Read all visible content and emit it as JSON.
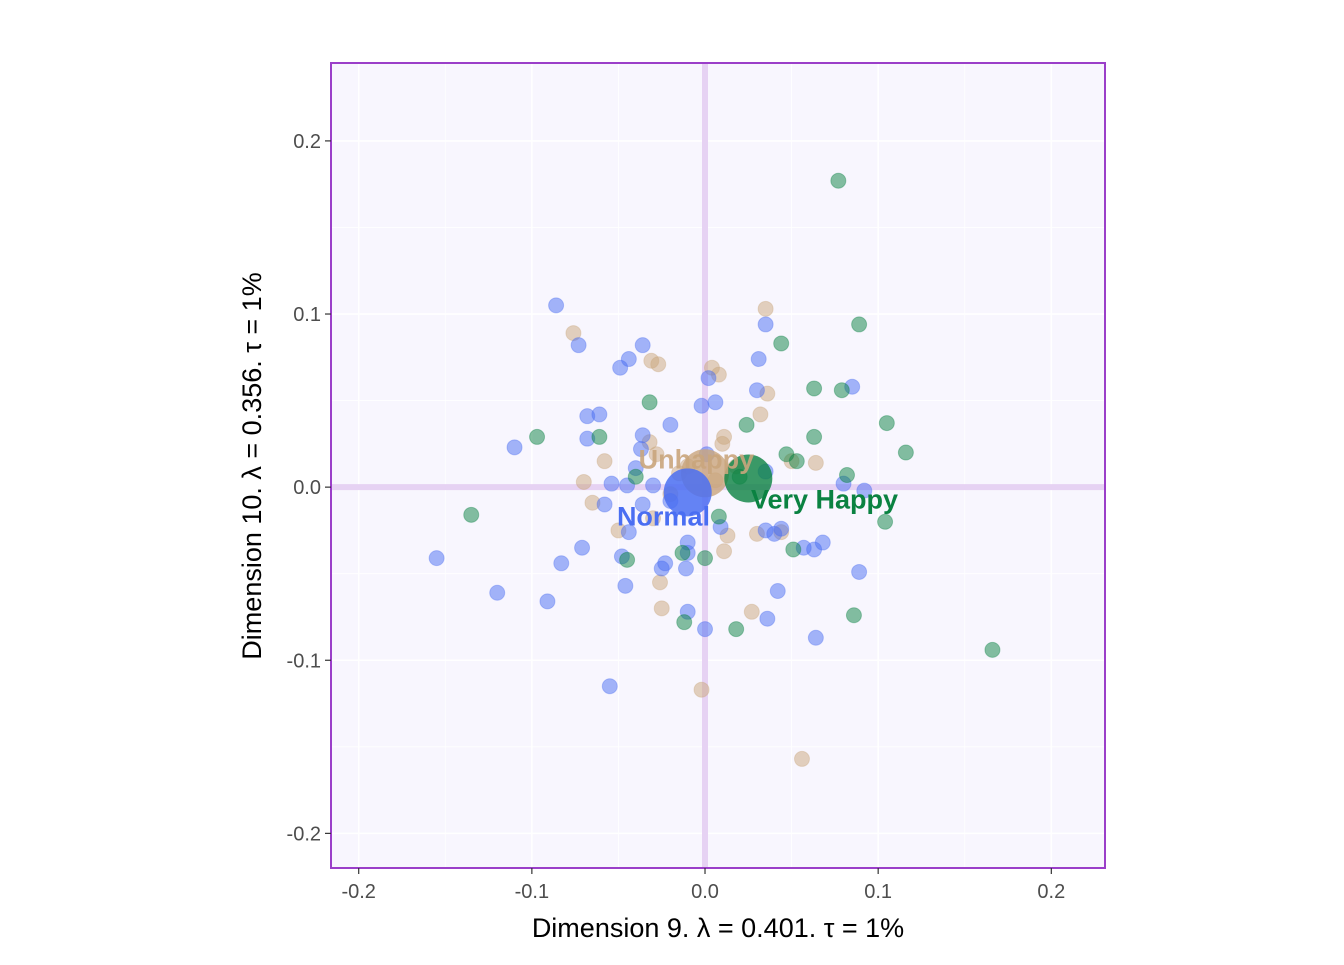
{
  "chart_data": {
    "type": "scatter",
    "xlabel": "Dimension 9.   λ = 0.401.  τ = 1%",
    "ylabel": "Dimension 10.   λ = 0.356.  τ = 1%",
    "xlim": [
      -0.216,
      0.231
    ],
    "ylim": [
      -0.22,
      0.245
    ],
    "x_ticks": [
      -0.2,
      -0.1,
      0.0,
      0.1,
      0.2
    ],
    "x_tick_labels": [
      "-0.2",
      "-0.1",
      "0.0",
      "0.1",
      "0.2"
    ],
    "y_ticks": [
      -0.2,
      -0.1,
      0.0,
      0.1,
      0.2
    ],
    "y_tick_labels": [
      "-0.2",
      "-0.1",
      "0.0",
      "0.1",
      "0.2"
    ],
    "grid": true,
    "zero_lines": true,
    "colors": {
      "panel_background": "#F8F6FE",
      "panel_border": "#9B3FC9",
      "grid": "#FFFFFF",
      "zero_line": "#E6D2F3",
      "Unhappy": "#C9A57C",
      "Normal": "#4A6EF2",
      "Very Happy": "#0A8241"
    },
    "groups": [
      {
        "name": "Unhappy",
        "center": {
          "x": 0.0,
          "y": 0.008
        },
        "label": {
          "x": -0.005,
          "y": 0.016
        },
        "points": [
          {
            "x": -0.076,
            "y": 0.089
          },
          {
            "x": -0.031,
            "y": 0.073
          },
          {
            "x": -0.027,
            "y": 0.071
          },
          {
            "x": 0.035,
            "y": 0.103
          },
          {
            "x": 0.004,
            "y": 0.069
          },
          {
            "x": 0.008,
            "y": 0.065
          },
          {
            "x": 0.036,
            "y": 0.054
          },
          {
            "x": 0.032,
            "y": 0.042
          },
          {
            "x": 0.011,
            "y": 0.029
          },
          {
            "x": -0.032,
            "y": 0.026
          },
          {
            "x": -0.058,
            "y": 0.015
          },
          {
            "x": -0.07,
            "y": 0.003
          },
          {
            "x": -0.065,
            "y": -0.009
          },
          {
            "x": -0.05,
            "y": -0.025
          },
          {
            "x": -0.03,
            "y": -0.018
          },
          {
            "x": -0.026,
            "y": -0.055
          },
          {
            "x": -0.025,
            "y": -0.07
          },
          {
            "x": -0.002,
            "y": -0.117
          },
          {
            "x": 0.011,
            "y": -0.037
          },
          {
            "x": 0.013,
            "y": -0.028
          },
          {
            "x": 0.03,
            "y": -0.027
          },
          {
            "x": 0.027,
            "y": -0.072
          },
          {
            "x": 0.044,
            "y": -0.026
          },
          {
            "x": 0.056,
            "y": -0.157
          },
          {
            "x": 0.05,
            "y": 0.015
          },
          {
            "x": 0.064,
            "y": 0.014
          },
          {
            "x": 0.01,
            "y": 0.025
          },
          {
            "x": 0.018,
            "y": 0.012
          },
          {
            "x": -0.015,
            "y": 0.008
          },
          {
            "x": -0.028,
            "y": 0.019
          },
          {
            "x": -0.02,
            "y": -0.004
          },
          {
            "x": 0.006,
            "y": 0.004
          },
          {
            "x": -0.01,
            "y": 0.012
          }
        ]
      },
      {
        "name": "Normal",
        "center": {
          "x": -0.01,
          "y": -0.003
        },
        "label": {
          "x": -0.024,
          "y": -0.017
        },
        "points": [
          {
            "x": -0.086,
            "y": 0.105
          },
          {
            "x": -0.073,
            "y": 0.082
          },
          {
            "x": -0.036,
            "y": 0.082
          },
          {
            "x": -0.044,
            "y": 0.074
          },
          {
            "x": -0.049,
            "y": 0.069
          },
          {
            "x": 0.035,
            "y": 0.094
          },
          {
            "x": 0.031,
            "y": 0.074
          },
          {
            "x": 0.002,
            "y": 0.063
          },
          {
            "x": 0.03,
            "y": 0.056
          },
          {
            "x": 0.085,
            "y": 0.058
          },
          {
            "x": 0.006,
            "y": 0.049
          },
          {
            "x": -0.002,
            "y": 0.047
          },
          {
            "x": -0.02,
            "y": 0.036
          },
          {
            "x": -0.068,
            "y": 0.041
          },
          {
            "x": -0.061,
            "y": 0.042
          },
          {
            "x": -0.036,
            "y": 0.03
          },
          {
            "x": -0.068,
            "y": 0.028
          },
          {
            "x": -0.11,
            "y": 0.023
          },
          {
            "x": -0.037,
            "y": 0.022
          },
          {
            "x": -0.04,
            "y": 0.011
          },
          {
            "x": -0.054,
            "y": 0.002
          },
          {
            "x": -0.045,
            "y": 0.001
          },
          {
            "x": -0.058,
            "y": -0.01
          },
          {
            "x": -0.03,
            "y": 0.001
          },
          {
            "x": -0.036,
            "y": -0.01
          },
          {
            "x": -0.044,
            "y": -0.026
          },
          {
            "x": -0.071,
            "y": -0.035
          },
          {
            "x": -0.083,
            "y": -0.044
          },
          {
            "x": -0.155,
            "y": -0.041
          },
          {
            "x": -0.12,
            "y": -0.061
          },
          {
            "x": -0.091,
            "y": -0.066
          },
          {
            "x": -0.055,
            "y": -0.115
          },
          {
            "x": -0.046,
            "y": -0.057
          },
          {
            "x": -0.048,
            "y": -0.04
          },
          {
            "x": -0.023,
            "y": -0.044
          },
          {
            "x": -0.025,
            "y": -0.047
          },
          {
            "x": -0.01,
            "y": -0.032
          },
          {
            "x": -0.011,
            "y": -0.047
          },
          {
            "x": -0.01,
            "y": -0.038
          },
          {
            "x": -0.01,
            "y": -0.072
          },
          {
            "x": 0.0,
            "y": -0.082
          },
          {
            "x": 0.009,
            "y": -0.023
          },
          {
            "x": 0.035,
            "y": -0.025
          },
          {
            "x": 0.036,
            "y": -0.076
          },
          {
            "x": 0.042,
            "y": -0.06
          },
          {
            "x": 0.04,
            "y": -0.027
          },
          {
            "x": 0.044,
            "y": -0.024
          },
          {
            "x": 0.057,
            "y": -0.035
          },
          {
            "x": 0.063,
            "y": -0.036
          },
          {
            "x": 0.068,
            "y": -0.032
          },
          {
            "x": 0.089,
            "y": -0.049
          },
          {
            "x": 0.064,
            "y": -0.087
          },
          {
            "x": 0.092,
            "y": -0.002
          },
          {
            "x": 0.08,
            "y": 0.002
          },
          {
            "x": 0.035,
            "y": 0.009
          },
          {
            "x": 0.001,
            "y": 0.019
          },
          {
            "x": -0.02,
            "y": -0.008
          }
        ]
      },
      {
        "name": "Very Happy",
        "center": {
          "x": 0.025,
          "y": 0.005
        },
        "label": {
          "x": 0.069,
          "y": -0.007
        },
        "points": [
          {
            "x": 0.077,
            "y": 0.177
          },
          {
            "x": 0.089,
            "y": 0.094
          },
          {
            "x": 0.044,
            "y": 0.083
          },
          {
            "x": 0.063,
            "y": 0.057
          },
          {
            "x": 0.079,
            "y": 0.056
          },
          {
            "x": -0.032,
            "y": 0.049
          },
          {
            "x": 0.024,
            "y": 0.036
          },
          {
            "x": 0.105,
            "y": 0.037
          },
          {
            "x": 0.063,
            "y": 0.029
          },
          {
            "x": 0.116,
            "y": 0.02
          },
          {
            "x": -0.097,
            "y": 0.029
          },
          {
            "x": -0.061,
            "y": 0.029
          },
          {
            "x": 0.047,
            "y": 0.019
          },
          {
            "x": 0.053,
            "y": 0.015
          },
          {
            "x": 0.082,
            "y": 0.007
          },
          {
            "x": -0.135,
            "y": -0.016
          },
          {
            "x": 0.104,
            "y": -0.02
          },
          {
            "x": 0.008,
            "y": -0.017
          },
          {
            "x": 0.051,
            "y": -0.036
          },
          {
            "x": -0.045,
            "y": -0.042
          },
          {
            "x": -0.013,
            "y": -0.038
          },
          {
            "x": 0.0,
            "y": -0.041
          },
          {
            "x": -0.012,
            "y": -0.078
          },
          {
            "x": 0.018,
            "y": -0.082
          },
          {
            "x": 0.086,
            "y": -0.074
          },
          {
            "x": 0.166,
            "y": -0.094
          },
          {
            "x": -0.04,
            "y": 0.006
          },
          {
            "x": 0.02,
            "y": 0.006
          }
        ]
      }
    ],
    "legend": "none"
  }
}
